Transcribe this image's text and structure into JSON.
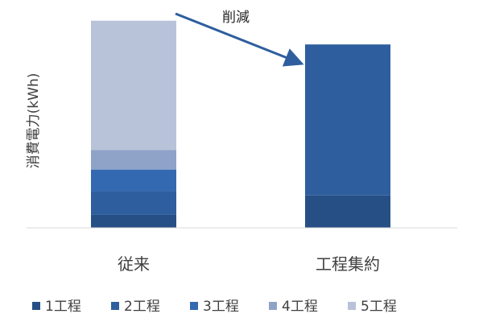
{
  "chart_data": {
    "type": "bar",
    "stacked": true,
    "categories": [
      "従来",
      "工程集約"
    ],
    "series": [
      {
        "name": "1工程",
        "color": "#264f85",
        "values": [
          6,
          15
        ]
      },
      {
        "name": "2工程",
        "color": "#2e5e9e",
        "values": [
          11,
          0
        ]
      },
      {
        "name": "3工程",
        "color": "#3369b0",
        "values": [
          10,
          0
        ]
      },
      {
        "name": "4工程",
        "color": "#8fa2c8",
        "values": [
          9,
          0
        ]
      },
      {
        "name": "5工程",
        "color": "#b8c3d9",
        "values": [
          60,
          0
        ]
      }
    ],
    "combined": [
      null,
      70
    ],
    "combined_color": "#2e5e9e",
    "ylabel": "消費電力(kWh)",
    "ylim": [
      0,
      100
    ],
    "ticks_visible": false,
    "grid": false,
    "legend_position": "bottom",
    "annotation": {
      "text": "削減",
      "type": "arrow",
      "from_category": "従来",
      "to_category": "工程集約"
    }
  }
}
